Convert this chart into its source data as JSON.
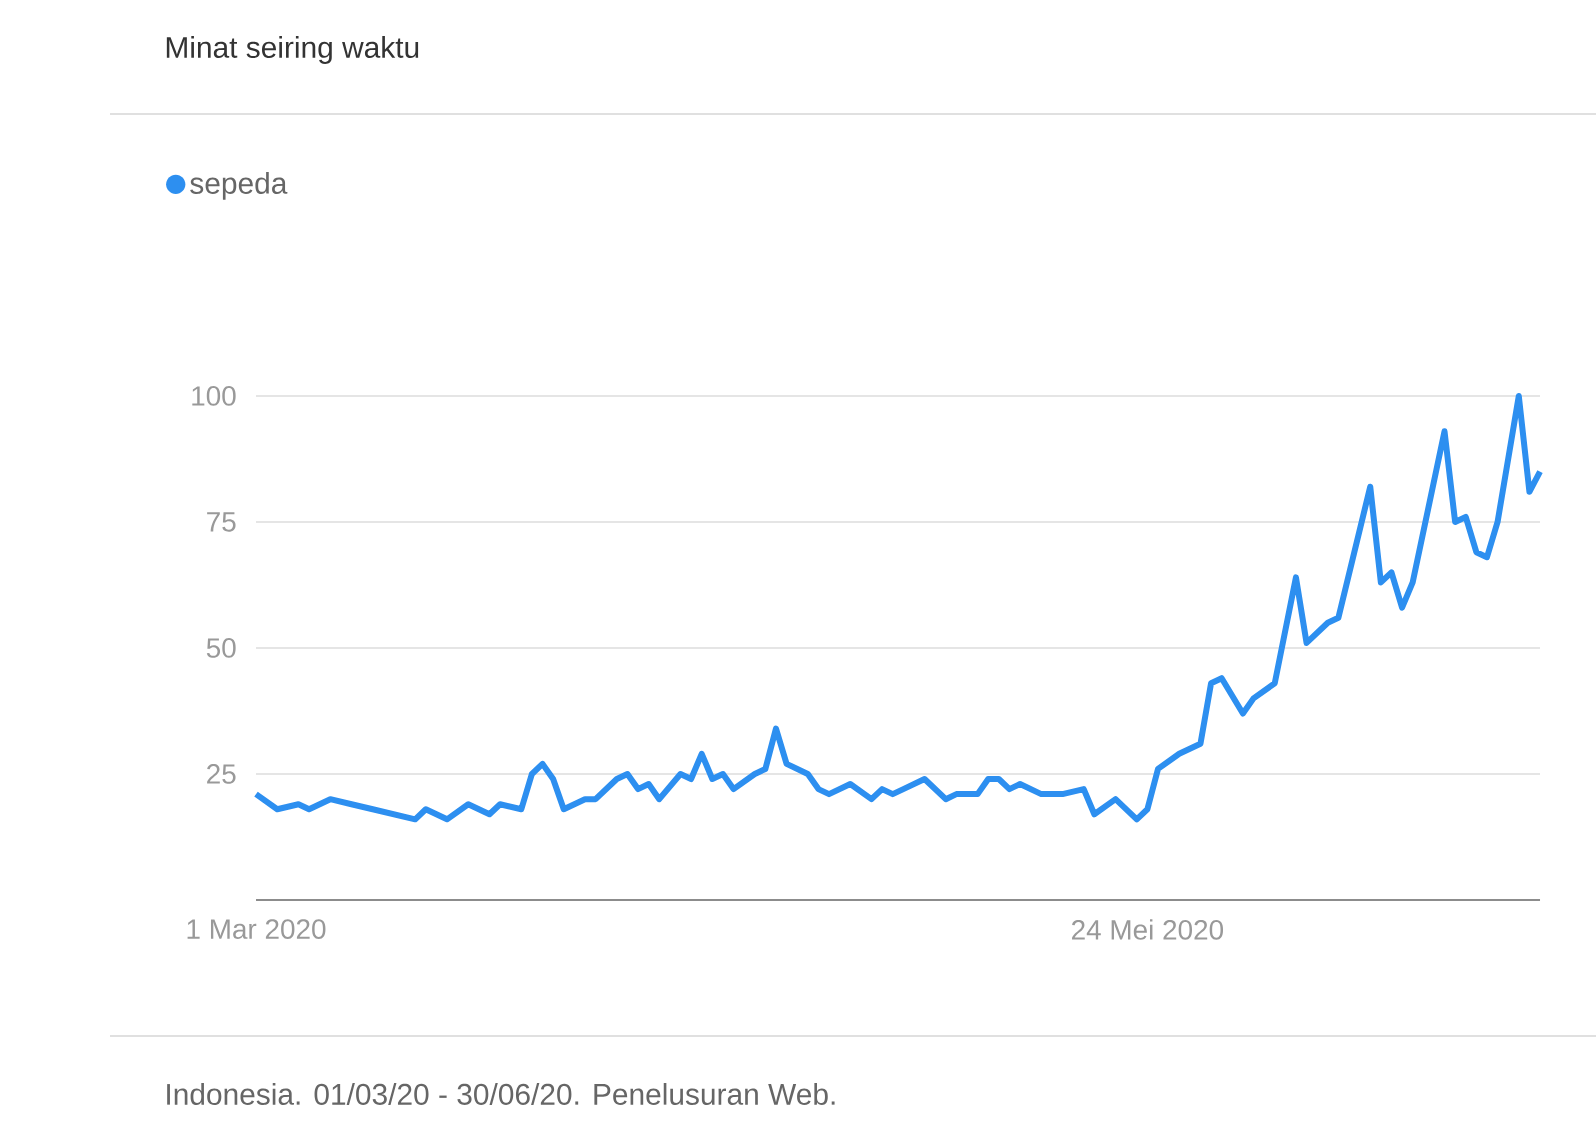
{
  "chart_data": {
    "type": "line",
    "title": "Minat seiring waktu",
    "annotations": [
      "Indonesia. 01/03/20 - 30/06/20. Penelusuran Web."
    ],
    "x": [
      "2020-03-01",
      "2020-03-03",
      "2020-03-05",
      "2020-03-06",
      "2020-03-08",
      "2020-03-10",
      "2020-03-12",
      "2020-03-14",
      "2020-03-16",
      "2020-03-17",
      "2020-03-19",
      "2020-03-21",
      "2020-03-23",
      "2020-03-24",
      "2020-03-26",
      "2020-03-27",
      "2020-03-28",
      "2020-03-29",
      "2020-03-30",
      "2020-04-01",
      "2020-04-02",
      "2020-04-04",
      "2020-04-05",
      "2020-04-06",
      "2020-04-07",
      "2020-04-08",
      "2020-04-10",
      "2020-04-11",
      "2020-04-12",
      "2020-04-13",
      "2020-04-14",
      "2020-04-15",
      "2020-04-17",
      "2020-04-18",
      "2020-04-19",
      "2020-04-20",
      "2020-04-22",
      "2020-04-23",
      "2020-04-24",
      "2020-04-26",
      "2020-04-28",
      "2020-04-29",
      "2020-04-30",
      "2020-05-01",
      "2020-05-03",
      "2020-05-05",
      "2020-05-06",
      "2020-05-08",
      "2020-05-09",
      "2020-05-10",
      "2020-05-11",
      "2020-05-12",
      "2020-05-14",
      "2020-05-16",
      "2020-05-18",
      "2020-05-19",
      "2020-05-21",
      "2020-05-23",
      "2020-05-24",
      "2020-05-25",
      "2020-05-27",
      "2020-05-29",
      "2020-05-30",
      "2020-05-31",
      "2020-06-02",
      "2020-06-03",
      "2020-06-05",
      "2020-06-07",
      "2020-06-08",
      "2020-06-10",
      "2020-06-11",
      "2020-06-14",
      "2020-06-15",
      "2020-06-16",
      "2020-06-17",
      "2020-06-18",
      "2020-06-21",
      "2020-06-22",
      "2020-06-23",
      "2020-06-24",
      "2020-06-25",
      "2020-06-26",
      "2020-06-28",
      "2020-06-29",
      "2020-06-30"
    ],
    "series": [
      {
        "name": "sepeda",
        "color": "#2d8ff0",
        "values": [
          21,
          18,
          19,
          18,
          20,
          19,
          18,
          17,
          16,
          18,
          16,
          19,
          17,
          19,
          18,
          25,
          27,
          24,
          18,
          20,
          20,
          24,
          25,
          22,
          23,
          20,
          25,
          24,
          29,
          24,
          25,
          22,
          25,
          26,
          34,
          27,
          25,
          22,
          21,
          23,
          20,
          22,
          21,
          22,
          24,
          20,
          21,
          21,
          24,
          24,
          22,
          23,
          21,
          21,
          22,
          17,
          20,
          16,
          18,
          26,
          29,
          31,
          43,
          44,
          37,
          40,
          43,
          64,
          51,
          55,
          56,
          82,
          63,
          65,
          58,
          63,
          93,
          75,
          76,
          69,
          68,
          75,
          100,
          81,
          85
        ]
      }
    ],
    "xlim": [
      "2020-03-01",
      "2020-06-30"
    ],
    "xticks": [
      {
        "value": "2020-03-01",
        "label": "1 Mar 2020"
      },
      {
        "value": "2020-05-24",
        "label": "24 Mei 2020"
      }
    ],
    "ylim": [
      0,
      100
    ],
    "yticks": [
      25,
      50,
      75,
      100
    ],
    "grid": "y",
    "legend": "top left",
    "marker": "none",
    "line_style": "solid"
  }
}
